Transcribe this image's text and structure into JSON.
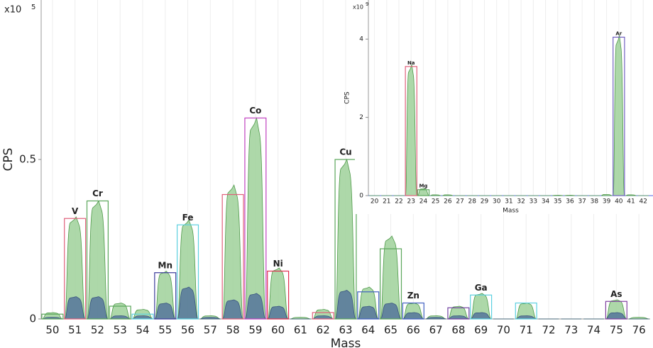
{
  "chart_data": [
    {
      "type": "area",
      "x_label": "Mass",
      "y_label": "CPS",
      "y_scale": {
        "base": "x10",
        "exponent": "5"
      },
      "xlim": [
        49.5,
        76.5
      ],
      "ylim": [
        0,
        1.0
      ],
      "xticks": [
        50,
        51,
        52,
        53,
        54,
        55,
        56,
        57,
        58,
        59,
        60,
        61,
        62,
        63,
        64,
        65,
        66,
        67,
        68,
        69,
        70,
        71,
        72,
        73,
        74,
        75,
        76
      ],
      "yticks": [
        0,
        0.5
      ],
      "grid": true,
      "x": [
        50,
        51,
        52,
        53,
        54,
        55,
        56,
        57,
        58,
        59,
        60,
        61,
        62,
        63,
        64,
        65,
        66,
        67,
        68,
        69,
        70,
        71,
        72,
        73,
        74,
        75,
        76
      ],
      "series": [
        {
          "color": "#9fd19a",
          "values": [
            0.02,
            0.32,
            0.37,
            0.05,
            0.03,
            0.15,
            0.31,
            0.01,
            0.42,
            0.63,
            0.16,
            0.005,
            0.03,
            0.5,
            0.1,
            0.26,
            0.05,
            0.01,
            0.04,
            0.08,
            0,
            0.05,
            0,
            0,
            0,
            0.06,
            0.005
          ]
        },
        {
          "color": "#4f6f9a",
          "values": [
            0.005,
            0.07,
            0.07,
            0.01,
            0.01,
            0.05,
            0.1,
            0.005,
            0.06,
            0.08,
            0.04,
            0,
            0.01,
            0.09,
            0.04,
            0.05,
            0.02,
            0.005,
            0.01,
            0.02,
            0,
            0.01,
            0,
            0,
            0,
            0.02,
            0
          ]
        }
      ],
      "boxes": [
        {
          "x": 50,
          "value": 0.015,
          "color": "#5aa65a"
        },
        {
          "x": 51,
          "value": 0.315,
          "color": "#e0607a",
          "label": "V"
        },
        {
          "x": 52,
          "value": 0.37,
          "color": "#5aa65a",
          "label": "Cr"
        },
        {
          "x": 53,
          "value": 0.04,
          "color": "#5aa65a"
        },
        {
          "x": 54,
          "value": 0.015,
          "color": "#5cd0e0"
        },
        {
          "x": 55,
          "value": 0.145,
          "color": "#3a3a9a",
          "label": "Mn"
        },
        {
          "x": 56,
          "value": 0.295,
          "color": "#5cd0e0",
          "label": "Fe"
        },
        {
          "x": 58,
          "value": 0.39,
          "color": "#e0607a"
        },
        {
          "x": 59,
          "value": 0.63,
          "color": "#c040c0",
          "label": "Co"
        },
        {
          "x": 60,
          "value": 0.15,
          "color": "#e03050",
          "label": "Ni"
        },
        {
          "x": 62,
          "value": 0.02,
          "color": "#e0607a"
        },
        {
          "x": 63,
          "value": 0.5,
          "color": "#5aa65a",
          "label": "Cu"
        },
        {
          "x": 64,
          "value": 0.085,
          "color": "#4060c0"
        },
        {
          "x": 65,
          "value": 0.22,
          "color": "#5aa65a"
        },
        {
          "x": 66,
          "value": 0.05,
          "color": "#4060c0",
          "label": "Zn"
        },
        {
          "x": 68,
          "value": 0.035,
          "color": "#7040a0"
        },
        {
          "x": 69,
          "value": 0.075,
          "color": "#5cd0e0",
          "label": "Ga"
        },
        {
          "x": 71,
          "value": 0.05,
          "color": "#5cd0e0"
        },
        {
          "x": 75,
          "value": 0.055,
          "color": "#8040a0",
          "label": "As"
        }
      ]
    },
    {
      "type": "area",
      "x_label": "Mass",
      "y_label": "CPS",
      "y_scale": {
        "base": "x10",
        "exponent": "9"
      },
      "xlim": [
        19.5,
        42.8
      ],
      "ylim": [
        0,
        5
      ],
      "xticks": [
        20,
        21,
        22,
        23,
        24,
        25,
        26,
        27,
        28,
        29,
        30,
        31,
        32,
        33,
        34,
        35,
        36,
        37,
        38,
        39,
        40,
        41,
        42
      ],
      "yticks": [
        0,
        2,
        4
      ],
      "grid": true,
      "x": [
        20,
        21,
        22,
        23,
        24,
        25,
        26,
        27,
        28,
        29,
        30,
        31,
        32,
        33,
        34,
        35,
        36,
        37,
        38,
        39,
        40,
        41,
        42
      ],
      "series": [
        {
          "color": "#9fd19a",
          "values": [
            0,
            0,
            0,
            3.35,
            0.18,
            0.02,
            0.02,
            0,
            0,
            0,
            0,
            0,
            0,
            0,
            0,
            0.01,
            0.01,
            0,
            0,
            0.03,
            4.1,
            0.02,
            0
          ]
        }
      ],
      "boxes": [
        {
          "x": 23,
          "value": 3.3,
          "color": "#e0607a",
          "label": "Na"
        },
        {
          "x": 24,
          "value": 0.15,
          "color": "#5aa65a",
          "label": "Mg"
        },
        {
          "x": 40,
          "value": 4.05,
          "color": "#7060c0",
          "label": "Ar"
        }
      ]
    }
  ]
}
